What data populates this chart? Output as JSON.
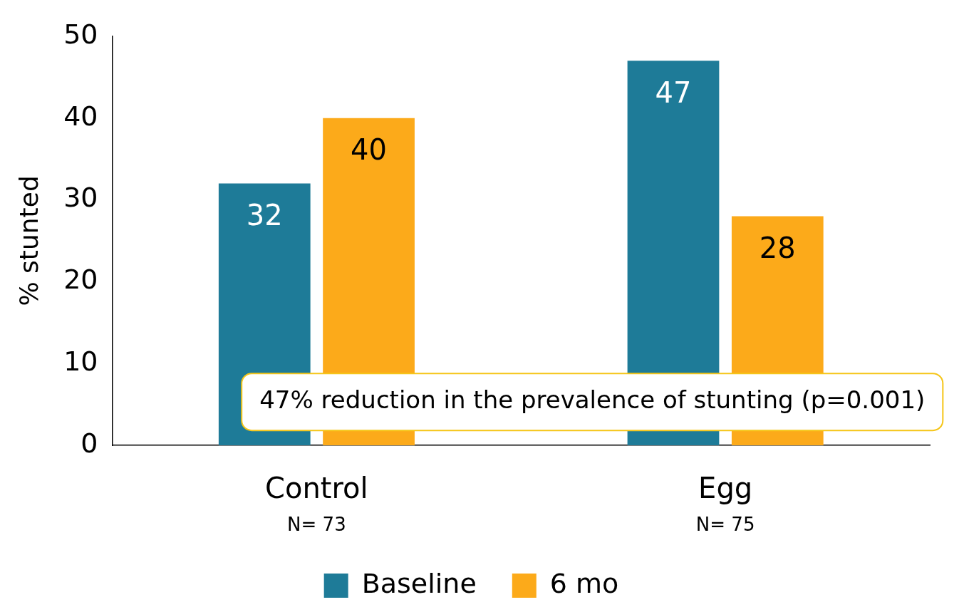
{
  "chart_data": {
    "type": "bar",
    "ylabel": "% stunted",
    "categories": [
      "Control",
      "Egg"
    ],
    "series": [
      {
        "name": "Baseline",
        "color": "#1e7b98",
        "values": [
          32,
          47
        ]
      },
      {
        "name": "6 mo",
        "color": "#fcaa1a",
        "values": [
          40,
          28
        ]
      }
    ],
    "ylim": [
      0,
      50
    ],
    "yticks": [
      0,
      10,
      20,
      30,
      40,
      50
    ],
    "grid": false,
    "legend": "bottom",
    "data_labels": true,
    "annotations": [
      "N= 73",
      "N= 75",
      "47% reduction in the prevalence of stunting (p=0.001)"
    ]
  }
}
